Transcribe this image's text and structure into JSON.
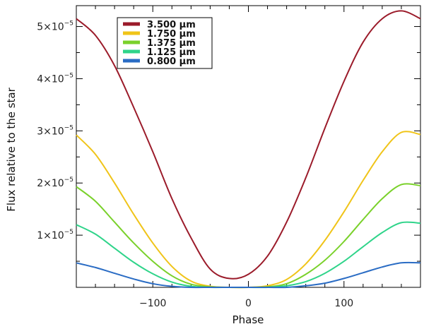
{
  "chart_data": {
    "type": "line",
    "title": "",
    "xlabel": "Phase",
    "ylabel": "Flux relative to the star",
    "xlim": [
      -180,
      180
    ],
    "ylim": [
      0,
      5.4e-05
    ],
    "x_ticks": [
      {
        "value": -100,
        "label": "−100"
      },
      {
        "value": 0,
        "label": "0"
      },
      {
        "value": 100,
        "label": "100"
      }
    ],
    "y_ticks": [
      {
        "value": 1e-05,
        "mant": "1×10",
        "exp": "−5"
      },
      {
        "value": 2e-05,
        "mant": "2×10",
        "exp": "−5"
      },
      {
        "value": 3e-05,
        "mant": "3×10",
        "exp": "−5"
      },
      {
        "value": 4e-05,
        "mant": "4×10",
        "exp": "−5"
      },
      {
        "value": 5e-05,
        "mant": "5×10",
        "exp": "−5"
      }
    ],
    "x": [
      -180,
      -160,
      -140,
      -120,
      -100,
      -80,
      -60,
      -40,
      -20,
      0,
      20,
      40,
      60,
      80,
      100,
      120,
      140,
      160,
      180
    ],
    "series": [
      {
        "name": "3.500 µm",
        "color": "#9b1b2a",
        "values": [
          5.15e-05,
          4.83e-05,
          4.25e-05,
          3.45e-05,
          2.6e-05,
          1.7e-05,
          9.5e-06,
          3.5e-06,
          1.7e-06,
          2.5e-06,
          6e-06,
          1.25e-05,
          2.1e-05,
          3.05e-05,
          3.95e-05,
          4.7e-05,
          5.15e-05,
          5.3e-05,
          5.15e-05
        ]
      },
      {
        "name": "1.750 µm",
        "color": "#f0c419",
        "values": [
          2.92e-05,
          2.55e-05,
          2e-05,
          1.4e-05,
          8.5e-06,
          4e-06,
          1.2e-06,
          2e-07,
          0.0,
          0.0,
          3e-07,
          1.5e-06,
          4.5e-06,
          9e-06,
          1.45e-05,
          2.05e-05,
          2.6e-05,
          2.97e-05,
          2.93e-05
        ]
      },
      {
        "name": "1.375 µm",
        "color": "#7ad12b",
        "values": [
          1.93e-05,
          1.65e-05,
          1.25e-05,
          8.5e-06,
          5e-06,
          2.2e-06,
          6e-07,
          1e-07,
          0.0,
          0.0,
          1e-07,
          7e-07,
          2.5e-06,
          5.2e-06,
          8.8e-06,
          1.3e-05,
          1.7e-05,
          1.97e-05,
          1.95e-05
        ]
      },
      {
        "name": "1.125 µm",
        "color": "#2fd48a",
        "values": [
          1.2e-05,
          1.02e-05,
          7.5e-06,
          4.8e-06,
          2.6e-06,
          1e-06,
          2e-07,
          0.0,
          0.0,
          0.0,
          0.0,
          3e-07,
          1.1e-06,
          2.7e-06,
          5e-06,
          7.8e-06,
          1.05e-05,
          1.24e-05,
          1.23e-05
        ]
      },
      {
        "name": "0.800 µm",
        "color": "#2a6cc4",
        "values": [
          4.7e-06,
          3.8e-06,
          2.7e-06,
          1.6e-06,
          7e-07,
          2e-07,
          0.0,
          0.0,
          0.0,
          0.0,
          0.0,
          0.0,
          3e-07,
          8e-07,
          1.7e-06,
          2.8e-06,
          3.9e-06,
          4.7e-06,
          4.7e-06
        ]
      }
    ]
  }
}
